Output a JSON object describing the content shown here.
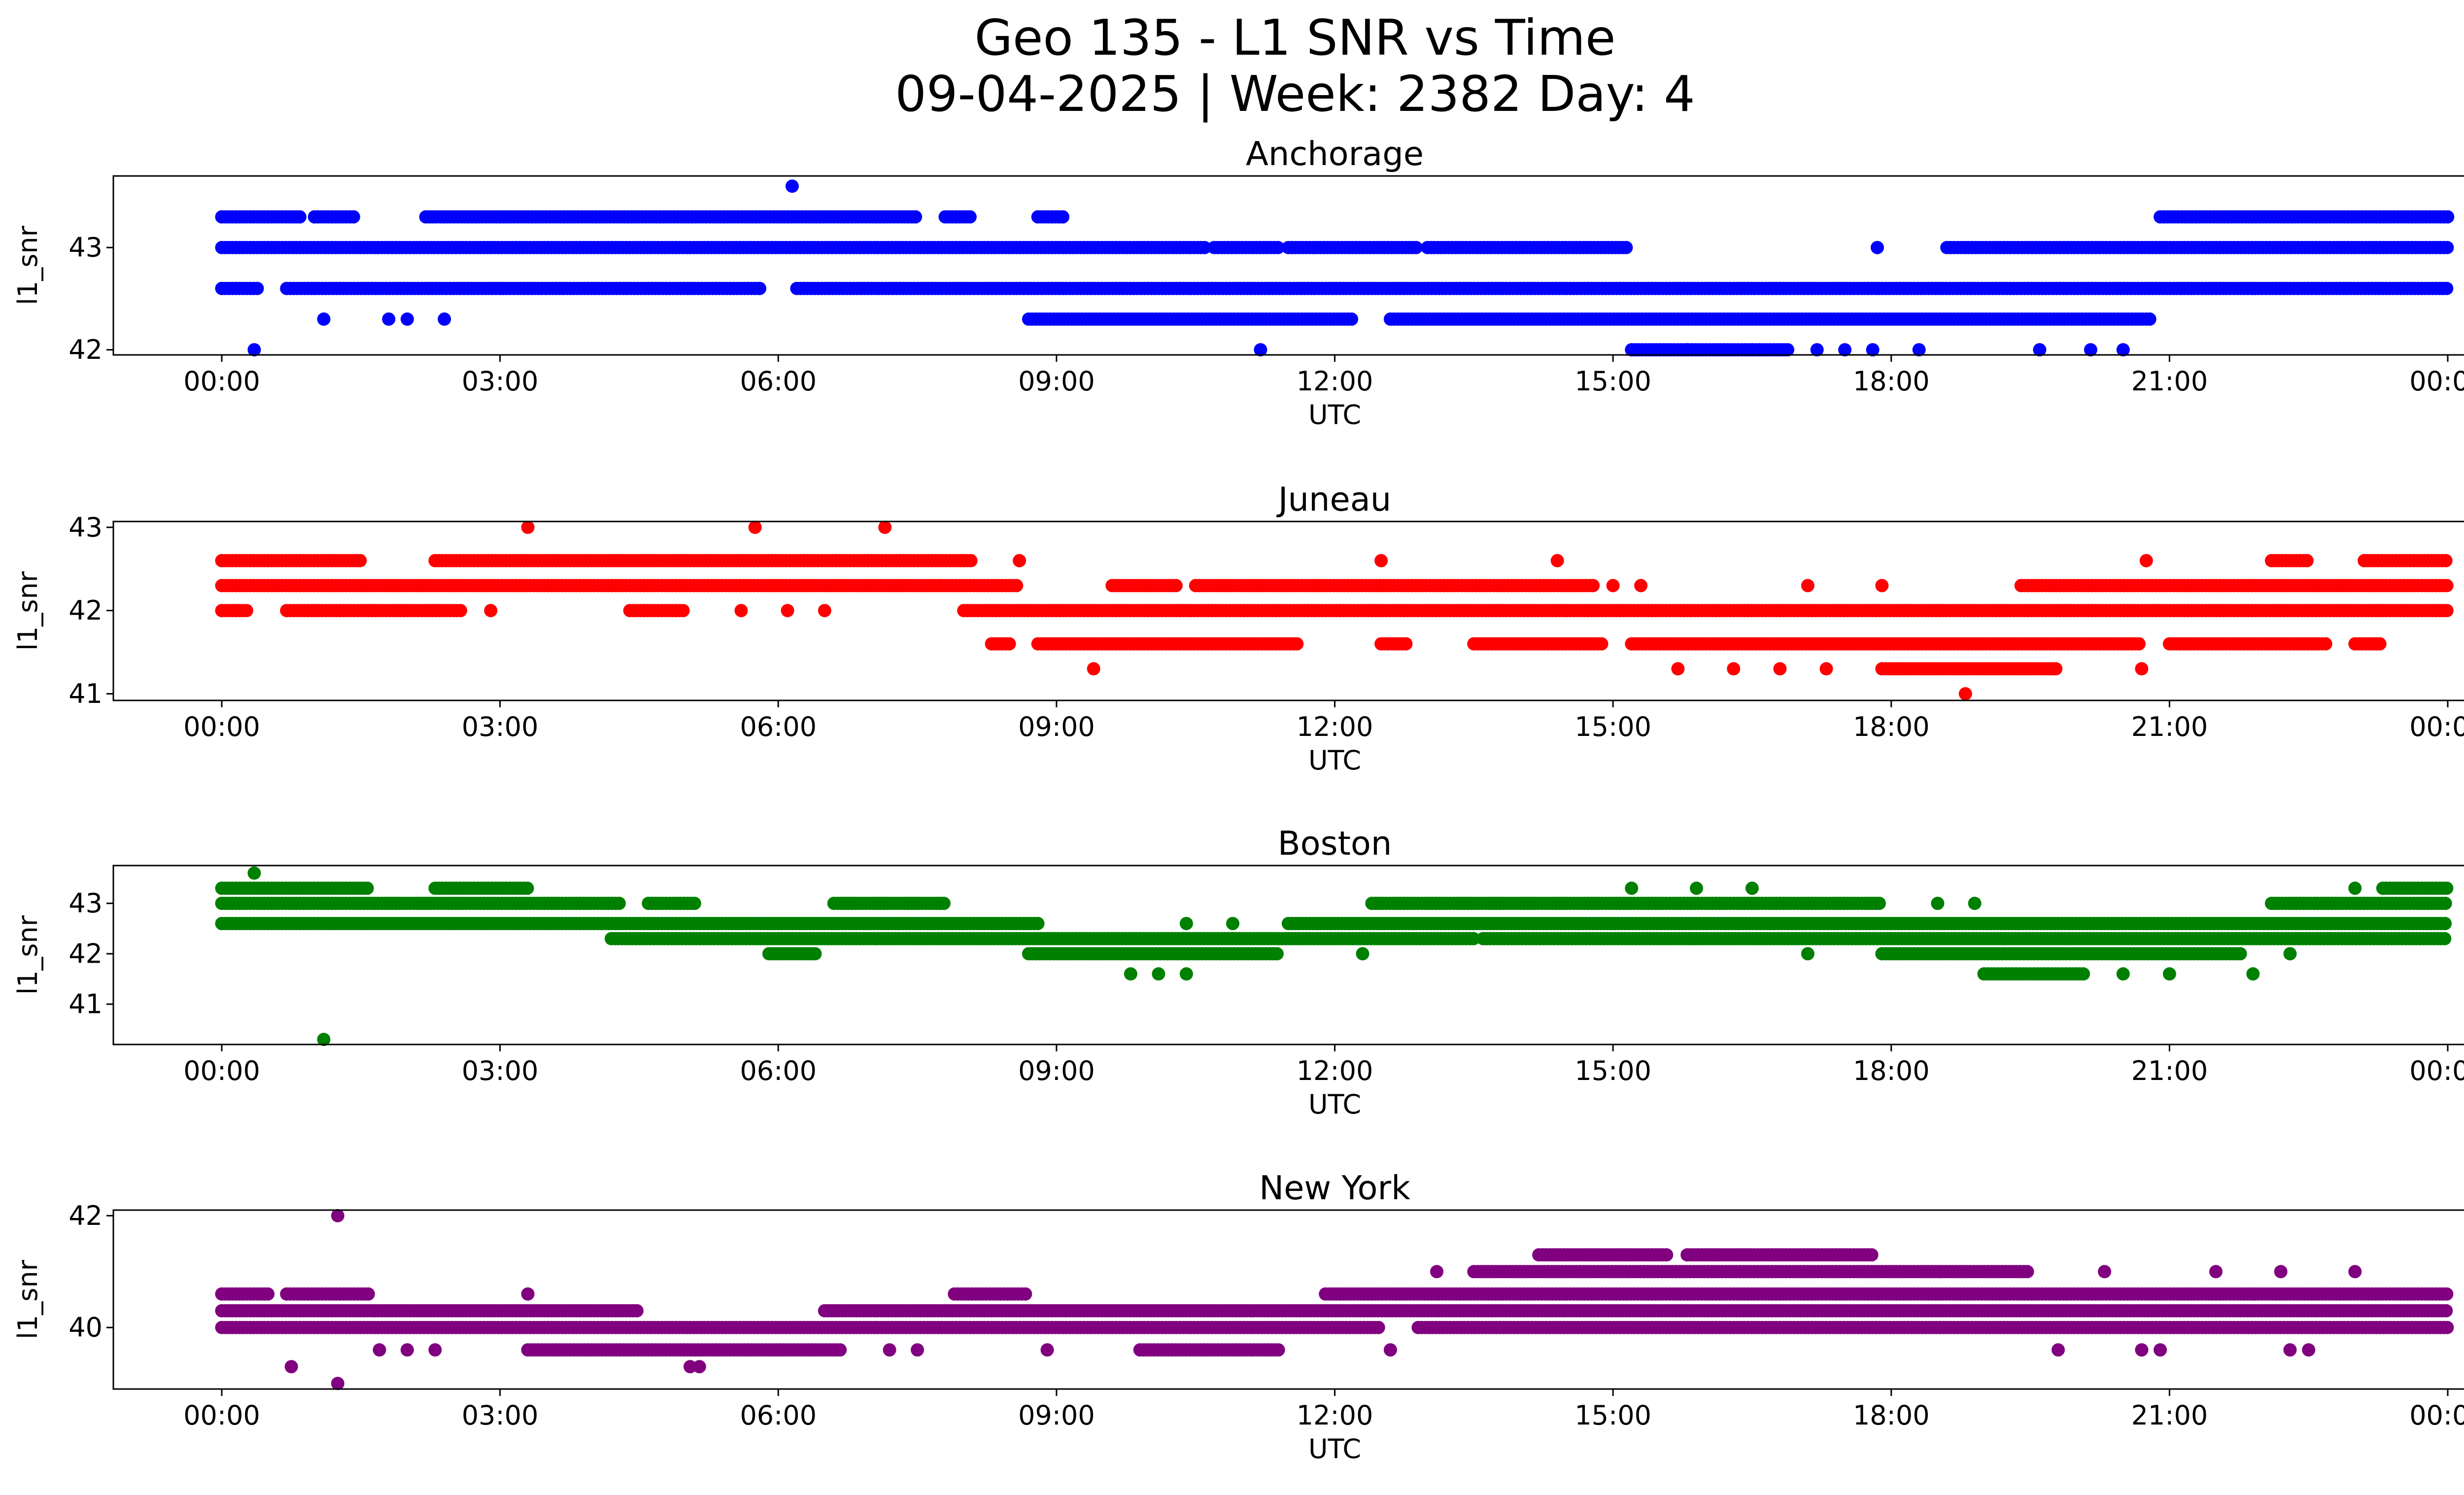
{
  "chart_data": {
    "type": "scatter",
    "suptitle_line1": "Geo 135 - L1 SNR vs Time",
    "suptitle_line2": "09-04-2025 | Week: 2382 Day: 4",
    "x_ticks": [
      "00:00",
      "03:00",
      "06:00",
      "09:00",
      "12:00",
      "15:00",
      "18:00",
      "21:00",
      "00:00"
    ],
    "x_range_hours": [
      0,
      24
    ],
    "xlabel": "UTC",
    "ylabel": "l1_snr",
    "panels": [
      {
        "title": "Anchorage",
        "color": "#0000ff",
        "ylim": [
          41.95,
          43.7
        ],
        "yticks": [
          "42",
          "43"
        ],
        "ytick_values": [
          42,
          43
        ],
        "bands": [
          {
            "y": 43.3,
            "segments": [
              [
                0.0,
                0.85
              ],
              [
                1.0,
                1.45
              ],
              [
                2.2,
                7.5
              ],
              [
                7.8,
                8.1
              ],
              [
                8.8,
                9.1
              ],
              [
                20.9,
                24.0
              ]
            ]
          },
          {
            "y": 43.0,
            "segments": [
              [
                0.0,
                10.6
              ],
              [
                10.7,
                11.4
              ],
              [
                11.5,
                12.9
              ],
              [
                13.0,
                15.15
              ],
              [
                18.6,
                24.0
              ]
            ]
          },
          {
            "y": 42.6,
            "segments": [
              [
                0.0,
                0.4
              ],
              [
                0.7,
                5.8
              ],
              [
                6.2,
                24.0
              ]
            ]
          },
          {
            "y": 42.3,
            "segments": [
              [
                8.7,
                12.2
              ],
              [
                12.6,
                20.8
              ]
            ]
          },
          {
            "y": 42.0,
            "segments": [
              [
                15.2,
                16.9
              ]
            ]
          }
        ],
        "points": [
          [
            0.35,
            42.0
          ],
          [
            6.15,
            43.6
          ],
          [
            11.2,
            42.0
          ],
          [
            17.2,
            42.0
          ],
          [
            17.5,
            42.0
          ],
          [
            17.8,
            42.0
          ],
          [
            17.85,
            43.0
          ],
          [
            18.3,
            42.0
          ],
          [
            19.6,
            42.0
          ],
          [
            20.15,
            42.0
          ],
          [
            20.5,
            42.0
          ],
          [
            1.1,
            42.3
          ],
          [
            1.8,
            42.3
          ],
          [
            2.0,
            42.3
          ],
          [
            2.4,
            42.3
          ],
          [
            5.8,
            42.6
          ],
          [
            15.8,
            42.0
          ],
          [
            16.5,
            42.0
          ]
        ]
      },
      {
        "title": "Juneau",
        "color": "#ff0000",
        "ylim": [
          40.92,
          43.07
        ],
        "yticks": [
          "41",
          "42",
          "43"
        ],
        "ytick_values": [
          41,
          42,
          43
        ],
        "bands": [
          {
            "y": 42.6,
            "segments": [
              [
                0.0,
                1.5
              ],
              [
                2.3,
                8.1
              ],
              [
                22.1,
                22.5
              ],
              [
                23.1,
                24.0
              ]
            ]
          },
          {
            "y": 42.3,
            "segments": [
              [
                0.0,
                8.6
              ],
              [
                9.6,
                10.3
              ],
              [
                10.5,
                14.8
              ],
              [
                19.4,
                24.0
              ]
            ]
          },
          {
            "y": 42.0,
            "segments": [
              [
                0.0,
                0.3
              ],
              [
                0.7,
                2.6
              ],
              [
                4.4,
                5.0
              ],
              [
                8.0,
                24.0
              ]
            ]
          },
          {
            "y": 41.6,
            "segments": [
              [
                8.3,
                8.5
              ],
              [
                8.8,
                11.6
              ],
              [
                12.5,
                12.8
              ],
              [
                13.5,
                14.9
              ],
              [
                15.2,
                20.7
              ],
              [
                21.0,
                22.7
              ],
              [
                23.0,
                23.3
              ]
            ]
          },
          {
            "y": 41.3,
            "segments": [
              [
                17.9,
                19.8
              ]
            ]
          }
        ],
        "points": [
          [
            3.3,
            43.0
          ],
          [
            5.75,
            43.0
          ],
          [
            7.15,
            43.0
          ],
          [
            8.6,
            42.6
          ],
          [
            12.5,
            42.6
          ],
          [
            14.4,
            42.6
          ],
          [
            20.75,
            42.6
          ],
          [
            9.4,
            41.3
          ],
          [
            15.7,
            41.3
          ],
          [
            16.3,
            41.3
          ],
          [
            16.8,
            41.3
          ],
          [
            17.3,
            41.3
          ],
          [
            20.7,
            41.3
          ],
          [
            18.8,
            41.0
          ],
          [
            2.9,
            42.0
          ],
          [
            5.6,
            42.0
          ],
          [
            6.1,
            42.0
          ],
          [
            6.5,
            42.0
          ],
          [
            15.0,
            42.3
          ],
          [
            15.3,
            42.3
          ],
          [
            17.1,
            42.3
          ],
          [
            17.9,
            42.3
          ]
        ]
      },
      {
        "title": "Boston",
        "color": "#008000",
        "ylim": [
          40.2,
          43.75
        ],
        "yticks": [
          "41",
          "42",
          "43"
        ],
        "ytick_values": [
          41,
          42,
          43
        ],
        "bands": [
          {
            "y": 43.3,
            "segments": [
              [
                0.0,
                1.6
              ],
              [
                2.3,
                3.3
              ],
              [
                23.3,
                24.0
              ]
            ]
          },
          {
            "y": 43.0,
            "segments": [
              [
                0.0,
                4.3
              ],
              [
                4.6,
                5.1
              ],
              [
                6.6,
                7.8
              ],
              [
                12.4,
                17.9
              ],
              [
                22.1,
                24.0
              ]
            ]
          },
          {
            "y": 42.6,
            "segments": [
              [
                0.0,
                8.8
              ],
              [
                11.5,
                24.0
              ]
            ]
          },
          {
            "y": 42.3,
            "segments": [
              [
                4.2,
                13.5
              ],
              [
                13.6,
                24.0
              ]
            ]
          },
          {
            "y": 42.0,
            "segments": [
              [
                5.9,
                6.4
              ],
              [
                8.7,
                11.4
              ],
              [
                17.9,
                21.8
              ]
            ]
          },
          {
            "y": 41.6,
            "segments": [
              [
                19.0,
                20.1
              ]
            ]
          }
        ],
        "points": [
          [
            0.35,
            43.6
          ],
          [
            1.1,
            40.3
          ],
          [
            9.8,
            41.6
          ],
          [
            10.1,
            41.6
          ],
          [
            10.4,
            41.6
          ],
          [
            20.5,
            41.6
          ],
          [
            21.0,
            41.6
          ],
          [
            21.9,
            41.6
          ],
          [
            15.2,
            43.3
          ],
          [
            15.9,
            43.3
          ],
          [
            16.5,
            43.3
          ],
          [
            23.0,
            43.3
          ],
          [
            12.3,
            42.0
          ],
          [
            17.1,
            42.0
          ],
          [
            22.3,
            42.0
          ],
          [
            10.4,
            42.6
          ],
          [
            10.9,
            42.6
          ],
          [
            18.5,
            43.0
          ],
          [
            18.9,
            43.0
          ]
        ]
      },
      {
        "title": "New York",
        "color": "#800080",
        "ylim": [
          38.9,
          42.1
        ],
        "yticks": [
          "40",
          "42"
        ],
        "ytick_values": [
          40,
          42
        ],
        "bands": [
          {
            "y": 41.3,
            "segments": [
              [
                14.2,
                15.6
              ],
              [
                15.8,
                17.8
              ]
            ]
          },
          {
            "y": 41.0,
            "segments": [
              [
                13.5,
                19.5
              ]
            ]
          },
          {
            "y": 40.6,
            "segments": [
              [
                0.0,
                0.5
              ],
              [
                0.7,
                1.6
              ],
              [
                7.9,
                8.7
              ],
              [
                11.9,
                24.0
              ]
            ]
          },
          {
            "y": 40.3,
            "segments": [
              [
                0.0,
                4.5
              ],
              [
                6.5,
                24.0
              ]
            ]
          },
          {
            "y": 40.0,
            "segments": [
              [
                0.0,
                12.5
              ],
              [
                12.9,
                24.0
              ]
            ]
          },
          {
            "y": 39.6,
            "segments": [
              [
                3.3,
                6.7
              ],
              [
                9.9,
                11.4
              ]
            ]
          }
        ],
        "points": [
          [
            1.25,
            42.0
          ],
          [
            0.75,
            39.3
          ],
          [
            1.25,
            39.0
          ],
          [
            5.05,
            39.3
          ],
          [
            5.15,
            39.3
          ],
          [
            3.3,
            40.6
          ],
          [
            1.7,
            39.6
          ],
          [
            2.0,
            39.6
          ],
          [
            2.3,
            39.6
          ],
          [
            8.9,
            39.6
          ],
          [
            12.6,
            39.6
          ],
          [
            19.8,
            39.6
          ],
          [
            22.3,
            39.6
          ],
          [
            22.5,
            39.6
          ],
          [
            13.1,
            41.0
          ],
          [
            20.3,
            41.0
          ],
          [
            23.0,
            41.0
          ],
          [
            21.5,
            41.0
          ],
          [
            22.2,
            41.0
          ],
          [
            7.2,
            39.6
          ],
          [
            7.5,
            39.6
          ],
          [
            20.7,
            39.6
          ],
          [
            20.9,
            39.6
          ]
        ]
      }
    ]
  }
}
